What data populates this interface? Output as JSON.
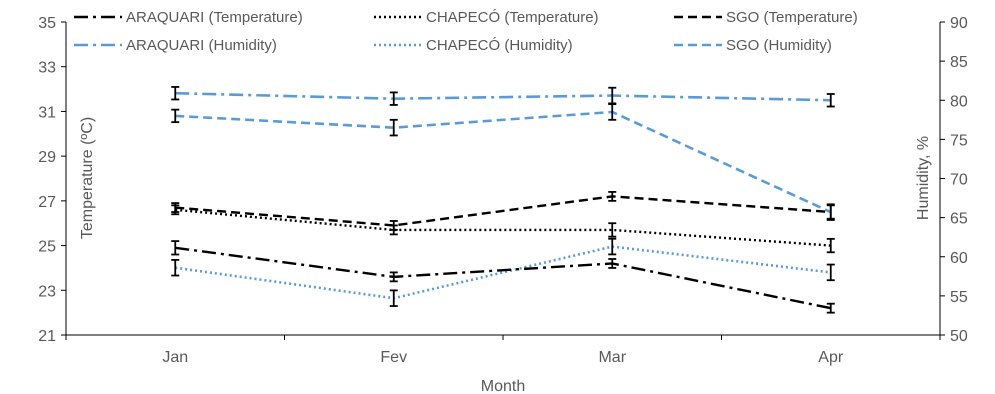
{
  "chart_data": {
    "type": "line",
    "title": "",
    "xlabel": "Month",
    "ylabel_left": "Temperature (ºC)",
    "ylabel_right": "Humidity, %",
    "categories": [
      "Jan",
      "Fev",
      "Mar",
      "Apr"
    ],
    "ylim_left": [
      21,
      35
    ],
    "yticks_left": [
      21,
      23,
      25,
      27,
      29,
      31,
      33,
      35
    ],
    "ylim_right": [
      50,
      90
    ],
    "yticks_right": [
      50,
      55,
      60,
      65,
      70,
      75,
      80,
      85,
      90
    ],
    "grid": false,
    "legend_position": "top",
    "series": [
      {
        "name": "ARAQUARI (Temperature)",
        "axis": "left",
        "color": "#000000",
        "dash": "dashdot",
        "values": [
          24.9,
          23.6,
          24.2,
          22.2
        ],
        "errors": [
          0.3,
          0.2,
          0.2,
          0.2
        ]
      },
      {
        "name": "CHAPECÓ (Temperature)",
        "axis": "left",
        "color": "#000000",
        "dash": "dot",
        "values": [
          26.6,
          25.7,
          25.7,
          25.0
        ],
        "errors": [
          0.2,
          0.2,
          0.3,
          0.3
        ]
      },
      {
        "name": "SGO (Temperature)",
        "axis": "left",
        "color": "#000000",
        "dash": "dash",
        "values": [
          26.7,
          25.9,
          27.2,
          26.5
        ],
        "errors": [
          0.2,
          0.2,
          0.2,
          0.3
        ]
      },
      {
        "name": "ARAQUARI (Humidity)",
        "axis": "right",
        "color": "#5b9bd5",
        "dash": "dashdot",
        "values": [
          80.9,
          80.2,
          80.6,
          80.0
        ],
        "errors": [
          0.8,
          0.8,
          1.0,
          0.8
        ]
      },
      {
        "name": "CHAPECÓ (Humidity)",
        "axis": "right",
        "color": "#5b9bd5",
        "dash": "dot",
        "values": [
          58.6,
          54.7,
          61.3,
          58.0
        ],
        "errors": [
          1.0,
          1.0,
          1.0,
          1.0
        ]
      },
      {
        "name": "SGO (Humidity)",
        "axis": "right",
        "color": "#5b9bd5",
        "dash": "dash",
        "values": [
          78.0,
          76.5,
          78.5,
          65.7
        ],
        "errors": [
          0.8,
          1.0,
          1.0,
          1.0
        ]
      }
    ]
  }
}
